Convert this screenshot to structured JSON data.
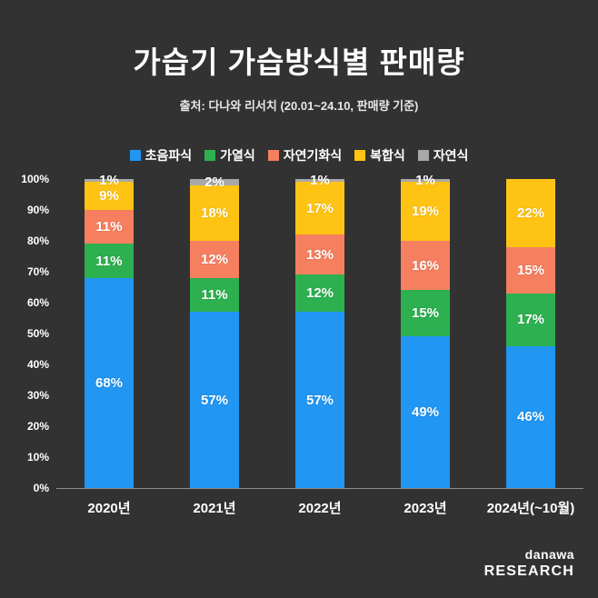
{
  "title": "가습기 가습방식별 판매량",
  "subtitle": "출처: 다나와 리서치 (20.01~24.10, 판매량 기준)",
  "logo": {
    "line1": "danawa",
    "line2": "RESEARCH"
  },
  "colors": {
    "background": "#323232",
    "text": "#ffffff",
    "axis": "#8d8d8d"
  },
  "chart_data": {
    "type": "bar",
    "stacked": true,
    "percent": true,
    "title": "가습기 가습방식별 판매량",
    "xlabel": "",
    "ylabel": "",
    "ylim": [
      0,
      100
    ],
    "grid": false,
    "legend_position": "top",
    "label_suffix": "%",
    "categories": [
      "2020년",
      "2021년",
      "2022년",
      "2023년",
      "2024년(~10월)"
    ],
    "series": [
      {
        "name": "초음파식",
        "color": "#2196f3",
        "values": [
          68,
          57,
          57,
          49,
          46
        ]
      },
      {
        "name": "가열식",
        "color": "#2db050",
        "values": [
          11,
          11,
          12,
          15,
          17
        ]
      },
      {
        "name": "자연기화식",
        "color": "#f57f5f",
        "values": [
          11,
          12,
          13,
          16,
          15
        ]
      },
      {
        "name": "복합식",
        "color": "#ffc413",
        "values": [
          9,
          18,
          17,
          19,
          22
        ]
      },
      {
        "name": "자연식",
        "color": "#a8a8a8",
        "values": [
          1,
          2,
          1,
          1,
          0
        ]
      }
    ],
    "y_ticks": [
      "100%",
      "90%",
      "80%",
      "70%",
      "60%",
      "50%",
      "40%",
      "30%",
      "20%",
      "10%",
      "0%"
    ]
  }
}
